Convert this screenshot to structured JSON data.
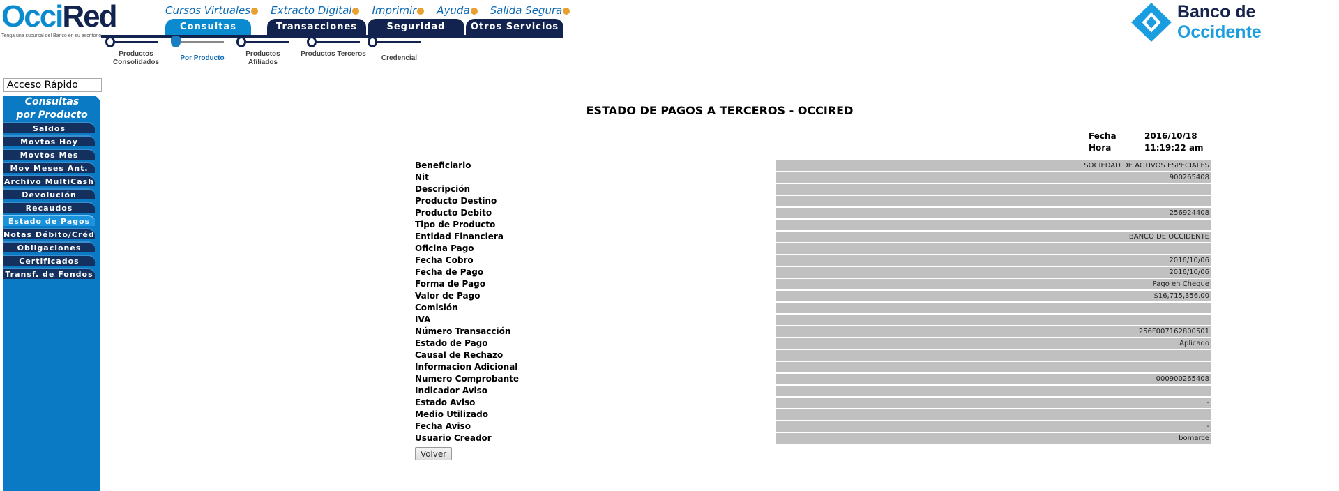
{
  "header": {
    "logo_a": "Occi",
    "logo_b": "Red",
    "tagline": "Tenga una sucursal del Banco en su escritorio",
    "bank_logo_a": "Banco de ",
    "bank_logo_b": "Occidente",
    "top_links": [
      "Cursos Virtuales",
      "Extracto Digital",
      "Imprimir",
      "Ayuda",
      "Salida Segura"
    ],
    "tabs": [
      "Consultas",
      "Transacciones",
      "Seguridad",
      "Otros Servicios"
    ],
    "subnav": [
      "Productos Consolidados",
      "Por Producto",
      "Productos Afiliados",
      "Productos Terceros",
      "Credencial"
    ]
  },
  "sidebar": {
    "quick_access": "Acceso Rápido",
    "heading1": "Consultas",
    "heading2": "por Producto",
    "items": [
      "Saldos",
      "Movtos Hoy",
      "Movtos Mes",
      "Mov Meses Ant.",
      "Archivo MultiCash",
      "Devolución",
      "Recaudos",
      "Estado de Pagos",
      "Notas Débito/Crédto",
      "Obligaciones",
      "Certificados",
      "Transf. de Fondos"
    ],
    "active": "Estado de Pagos"
  },
  "main": {
    "title": "ESTADO DE PAGOS A TERCEROS - OCCIRED",
    "fecha_label": "Fecha",
    "fecha": "2016/10/18",
    "hora_label": "Hora",
    "hora": "11:19:22 am",
    "rows": [
      {
        "k": "Beneficiario",
        "v": "SOCIEDAD DE ACTIVOS ESPECIALES"
      },
      {
        "k": "Nit",
        "v": "900265408"
      },
      {
        "k": "Descripción",
        "v": ""
      },
      {
        "k": "Producto Destino",
        "v": ""
      },
      {
        "k": "Producto Debito",
        "v": "256924408"
      },
      {
        "k": "Tipo de Producto",
        "v": ""
      },
      {
        "k": "Entidad Financiera",
        "v": "BANCO DE OCCIDENTE"
      },
      {
        "k": "Oficina Pago",
        "v": ""
      },
      {
        "k": "Fecha Cobro",
        "v": "2016/10/06"
      },
      {
        "k": "Fecha de Pago",
        "v": "2016/10/06"
      },
      {
        "k": "Forma de Pago",
        "v": "Pago en Cheque"
      },
      {
        "k": "Valor de Pago",
        "v": "$16,715,356.00"
      },
      {
        "k": "Comisión",
        "v": ""
      },
      {
        "k": "IVA",
        "v": ""
      },
      {
        "k": "Número Transacción",
        "v": "256F007162800501"
      },
      {
        "k": "Estado de Pago",
        "v": "Aplicado"
      },
      {
        "k": "Causal de Rechazo",
        "v": ""
      },
      {
        "k": "Informacion Adicional",
        "v": ""
      },
      {
        "k": "Numero Comprobante",
        "v": "000900265408"
      },
      {
        "k": "Indicador Aviso",
        "v": ""
      },
      {
        "k": "Estado Aviso",
        "v": "-"
      },
      {
        "k": "Medio Utilizado",
        "v": ""
      },
      {
        "k": "Fecha Aviso",
        "v": "-"
      },
      {
        "k": "Usuario Creador",
        "v": "bomarce"
      }
    ],
    "back_button": "Volver"
  },
  "colors": {
    "brand_blue": "#0a7ac5",
    "navy": "#12234f",
    "cell_gray": "#c0c0c0"
  }
}
